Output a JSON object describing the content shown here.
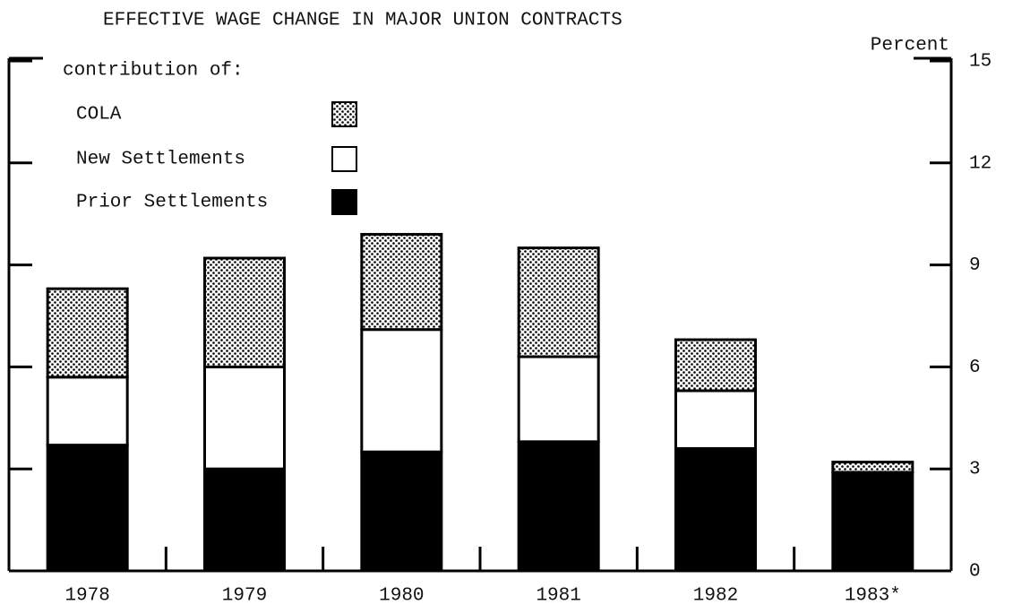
{
  "chart_data": {
    "type": "stacked_bar",
    "title": "EFFECTIVE WAGE CHANGE IN MAJOR UNION CONTRACTS",
    "y_axis_label": "Percent",
    "legend_title": "contribution of:",
    "categories": [
      "1978",
      "1979",
      "1980",
      "1981",
      "1982",
      "1983*"
    ],
    "series": [
      {
        "name": "Prior Settlements",
        "color": "#000000",
        "values": [
          3.7,
          3.0,
          3.5,
          3.8,
          3.6,
          2.9
        ]
      },
      {
        "name": "New Settlements",
        "color": "#ffffff",
        "values": [
          2.0,
          3.0,
          3.6,
          2.5,
          1.7,
          0
        ]
      },
      {
        "name": "COLA",
        "color": "dotted",
        "values": [
          2.6,
          3.2,
          2.8,
          3.2,
          1.5,
          0.3
        ]
      }
    ],
    "ylim": [
      0,
      15
    ],
    "yticks": [
      0,
      3,
      6,
      9,
      12,
      15
    ]
  }
}
